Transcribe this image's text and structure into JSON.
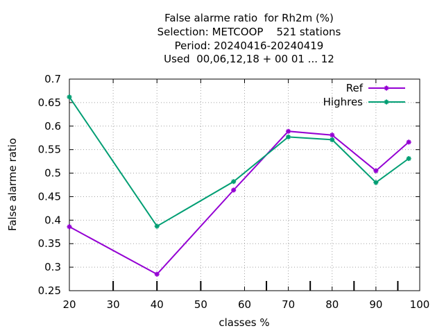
{
  "chart_data": {
    "type": "line",
    "title": [
      "False alarme ratio  for Rh2m (%)",
      "Selection: METCOOP    521 stations",
      "Period: 20240416-20240419",
      "Used  00,06,12,18 + 00 01 ... 12"
    ],
    "xlabel": "classes %",
    "ylabel": "False alarme ratio",
    "xlim": [
      20,
      100
    ],
    "ylim": [
      0.25,
      0.7
    ],
    "xticks": [
      "20",
      "30",
      "40",
      "50",
      "60",
      "70",
      "80",
      "90",
      "100"
    ],
    "yticks": [
      "0.25",
      "0.3",
      "0.35",
      "0.4",
      "0.45",
      "0.5",
      "0.55",
      "0.6",
      "0.65",
      "0.7"
    ],
    "grid": true,
    "legend_position": "top-right",
    "series": [
      {
        "name": "Ref",
        "color": "#9400d3",
        "x": [
          20,
          40,
          57.5,
          70,
          80,
          90,
          97.5
        ],
        "y": [
          0.386,
          0.285,
          0.464,
          0.589,
          0.581,
          0.505,
          0.566
        ]
      },
      {
        "name": "Highres",
        "color": "#009e73",
        "x": [
          20,
          40,
          57.5,
          70,
          80,
          90,
          97.5
        ],
        "y": [
          0.662,
          0.387,
          0.482,
          0.577,
          0.571,
          0.48,
          0.531
        ]
      }
    ],
    "bottom_marker_x": [
      30,
      40,
      50,
      65,
      75,
      85,
      95
    ]
  }
}
